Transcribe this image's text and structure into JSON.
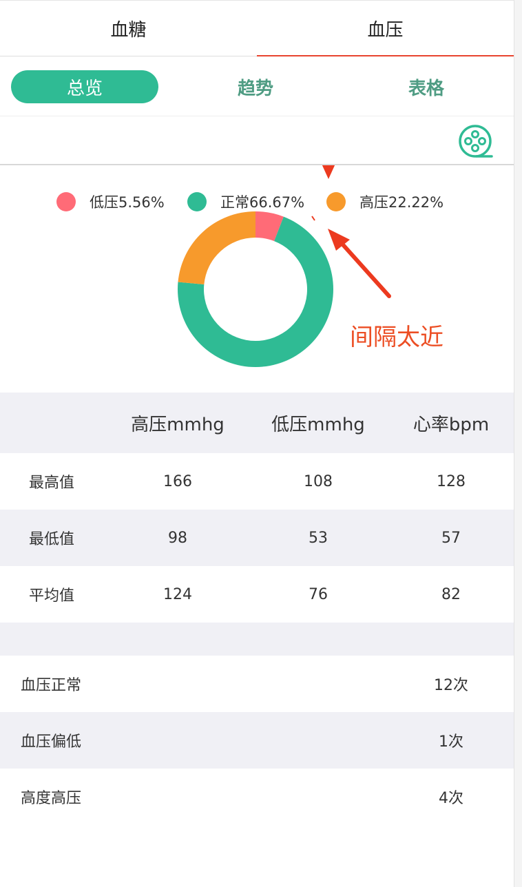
{
  "main_tabs": [
    {
      "label": "血糖",
      "active": false
    },
    {
      "label": "血压",
      "active": true
    }
  ],
  "sub_tabs": [
    {
      "label": "总览",
      "active": true
    },
    {
      "label": "趋势",
      "active": false
    },
    {
      "label": "表格",
      "active": false
    }
  ],
  "toolbar": {
    "icon": "film-reel-icon"
  },
  "chart_data": {
    "type": "pie",
    "title": "",
    "categories": [
      "低压",
      "正常",
      "高压"
    ],
    "values": [
      5.56,
      66.67,
      22.22
    ],
    "legend": [
      {
        "label": "低压5.56%",
        "color": "#ff6b77"
      },
      {
        "label": "正常66.67%",
        "color": "#2fbb94"
      },
      {
        "label": "高压22.22%",
        "color": "#f79a2c"
      }
    ],
    "legend_placement": "top",
    "donut": true
  },
  "annotation": {
    "text": "间隔太近",
    "color": "#ec4e24"
  },
  "stats_table": {
    "headers": [
      "",
      "高压mmhg",
      "低压mmhg",
      "心率bpm"
    ],
    "rows": [
      [
        "最高值",
        "166",
        "108",
        "128"
      ],
      [
        "最低值",
        "98",
        "53",
        "57"
      ],
      [
        "平均值",
        "124",
        "76",
        "82"
      ]
    ]
  },
  "counts": [
    {
      "label": "血压正常",
      "value": "12次"
    },
    {
      "label": "血压偏低",
      "value": "1次"
    },
    {
      "label": "高度高压",
      "value": "4次"
    }
  ],
  "colors": {
    "accent": "#2fbb94",
    "tab_underline": "#e8432e",
    "row_alt": "#f0f0f5"
  }
}
